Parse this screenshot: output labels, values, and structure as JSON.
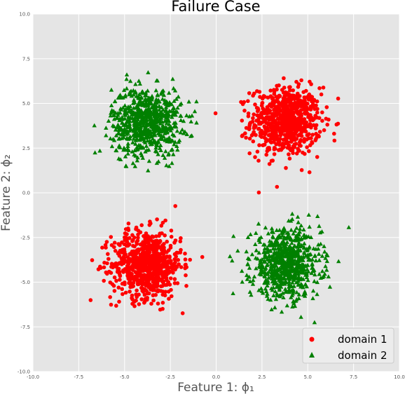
{
  "chart_data": {
    "type": "scatter",
    "title": "Failure Case",
    "xlabel": "Feature 1: ϕ₁",
    "ylabel": "Feature 2: ϕ₂",
    "xlim": [
      -10.0,
      10.0
    ],
    "ylim": [
      -10.0,
      10.0
    ],
    "x_ticks": [
      "-10.0",
      "-7.5",
      "-5.0",
      "-2.5",
      "0.0",
      "2.5",
      "5.0",
      "7.5",
      "10.0"
    ],
    "y_ticks": [
      "10.0",
      "7.5",
      "5.0",
      "2.5",
      "0.0",
      "-2.5",
      "-5.0",
      "-7.5",
      "-10.0"
    ],
    "grid": true,
    "legend_position": "bottom-right",
    "background_color": "#e5e5e5",
    "series": [
      {
        "name": "domain 1",
        "marker": "circle",
        "color": "#ff0000",
        "clusters": [
          {
            "center_x": 3.8,
            "center_y": 4.0,
            "spread": 0.95,
            "count": 750
          },
          {
            "center_x": -3.8,
            "center_y": -4.0,
            "spread": 0.95,
            "count": 750
          }
        ]
      },
      {
        "name": "domain 2",
        "marker": "triangle",
        "color": "#008000",
        "clusters": [
          {
            "center_x": -3.8,
            "center_y": 4.0,
            "spread": 0.95,
            "count": 750
          },
          {
            "center_x": 3.8,
            "center_y": -4.0,
            "spread": 0.95,
            "count": 750
          }
        ]
      }
    ]
  }
}
